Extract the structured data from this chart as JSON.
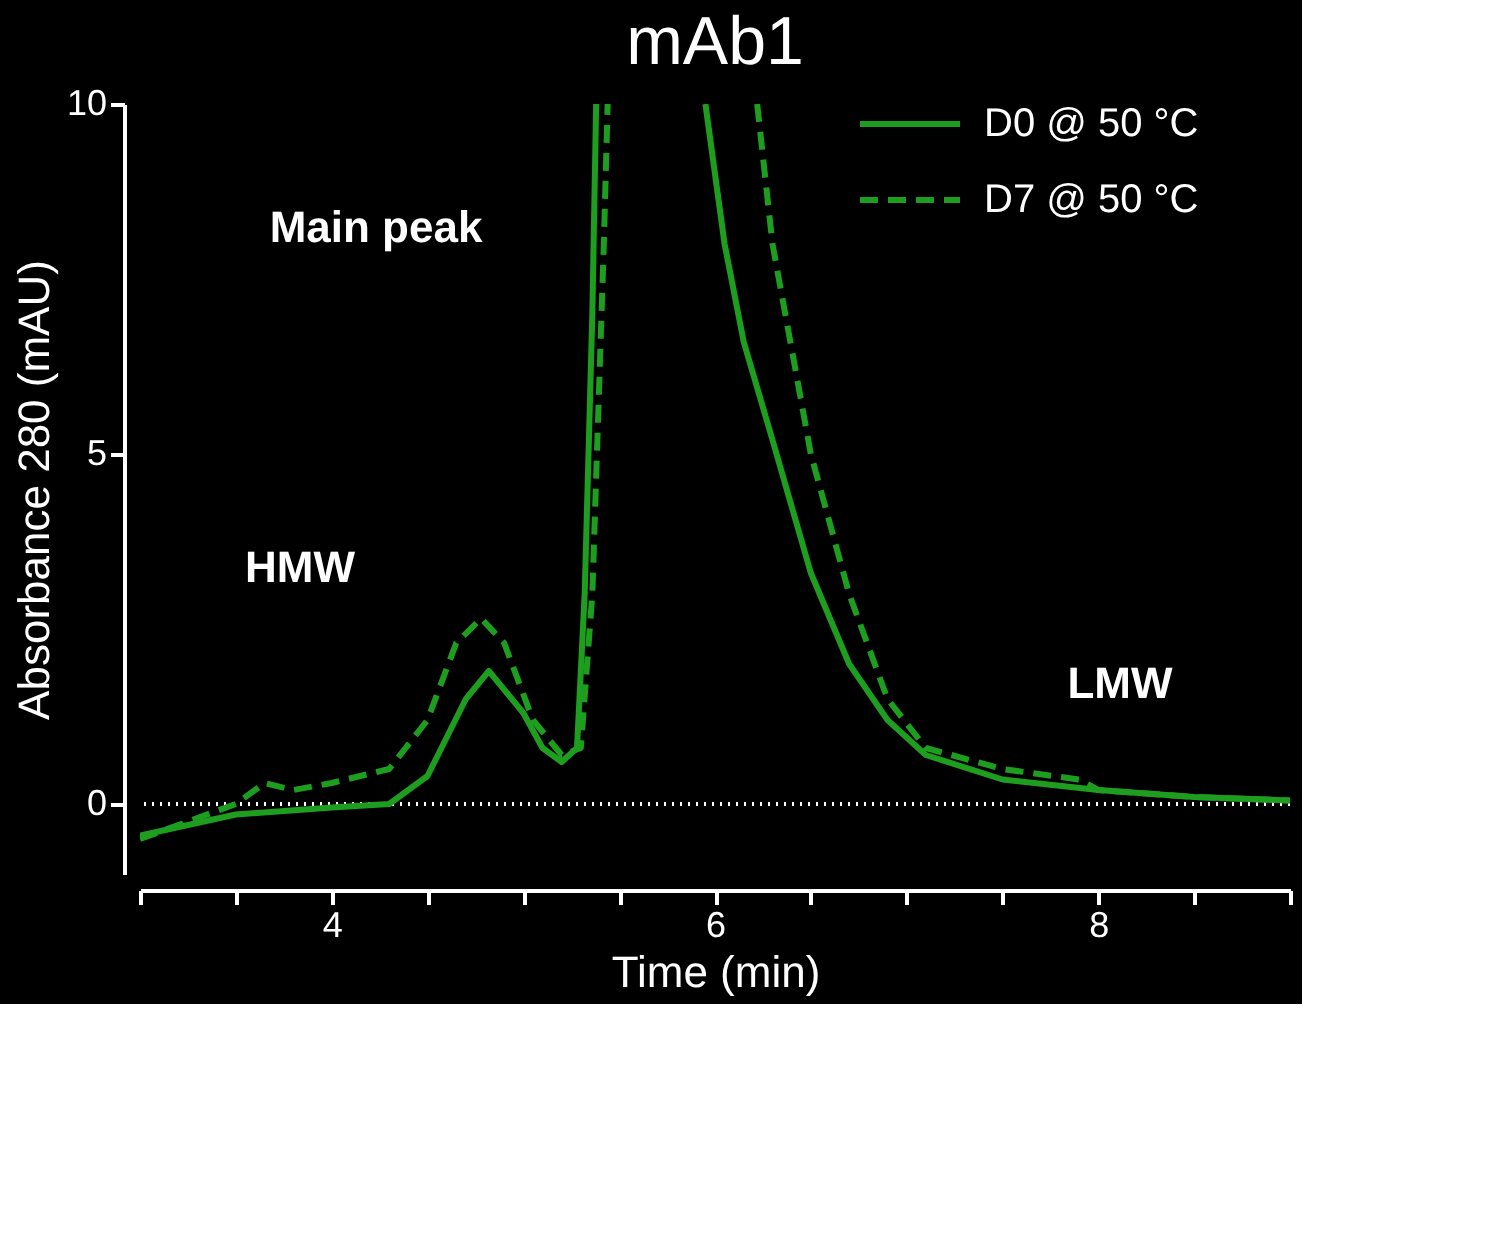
{
  "chart_data": {
    "type": "line",
    "title": "mAb1",
    "xlabel": "Time (min)",
    "ylabel": "Absorbance 280 (mAU)",
    "xlim": [
      3,
      9
    ],
    "ylim": [
      -1,
      10
    ],
    "xticks": [
      {
        "value": 3,
        "label": null
      },
      {
        "value": 3.5,
        "label": null
      },
      4,
      {
        "value": 4.5,
        "label": null
      },
      {
        "value": 5,
        "label": null
      },
      {
        "value": 5.5,
        "label": null
      },
      6,
      {
        "value": 6.5,
        "label": null
      },
      {
        "value": 7,
        "label": null
      },
      {
        "value": 7.5,
        "label": null
      },
      8,
      {
        "value": 8.5,
        "label": null
      },
      {
        "value": 9,
        "label": null
      }
    ],
    "yticks": [
      0,
      5,
      10
    ],
    "grid": false,
    "legend": "top right",
    "marker": "none",
    "ref_lines": [
      {
        "axis": "y",
        "value": 0,
        "label": null,
        "color": "#ffffff",
        "line_style": "dotted"
      }
    ],
    "annotations": [
      "Main peak",
      "HMW",
      "LMW"
    ],
    "series": [
      {
        "name": "D0 @ 50 °C",
        "color": "#1e9e1e",
        "line_style": "solid",
        "x": [
          3.0,
          3.5,
          4.0,
          4.3,
          4.5,
          4.7,
          4.82,
          5.0,
          5.1,
          5.2,
          5.28,
          5.32,
          5.36,
          5.38,
          5.7,
          5.95,
          6.05,
          6.15,
          6.3,
          6.5,
          6.7,
          6.9,
          7.1,
          7.5,
          8.0,
          8.5,
          9.0
        ],
        "values": [
          -0.45,
          -0.15,
          -0.05,
          0.0,
          0.4,
          1.5,
          1.9,
          1.3,
          0.8,
          0.6,
          0.8,
          3,
          7,
          10,
          null,
          10,
          8,
          6.6,
          5.2,
          3.3,
          2.0,
          1.2,
          0.7,
          0.35,
          0.2,
          0.1,
          0.05
        ]
      },
      {
        "name": "D7 @ 50 °C",
        "color": "#1e9e1e",
        "line_style": "dashed",
        "x": [
          3.0,
          3.5,
          3.65,
          3.8,
          4.0,
          4.3,
          4.5,
          4.65,
          4.78,
          4.9,
          5.05,
          5.2,
          5.3,
          5.36,
          5.42,
          5.44,
          5.8,
          6.22,
          6.3,
          6.4,
          6.5,
          6.7,
          6.9,
          7.1,
          7.5,
          7.9,
          8.0,
          8.5,
          9.0
        ],
        "values": [
          -0.5,
          0.0,
          0.3,
          0.2,
          0.3,
          0.5,
          1.2,
          2.3,
          2.65,
          2.3,
          1.2,
          0.7,
          0.8,
          3,
          8,
          10,
          null,
          10,
          8,
          6.5,
          5,
          3,
          1.5,
          0.8,
          0.5,
          0.35,
          0.2,
          0.1,
          0.05
        ]
      }
    ]
  }
}
